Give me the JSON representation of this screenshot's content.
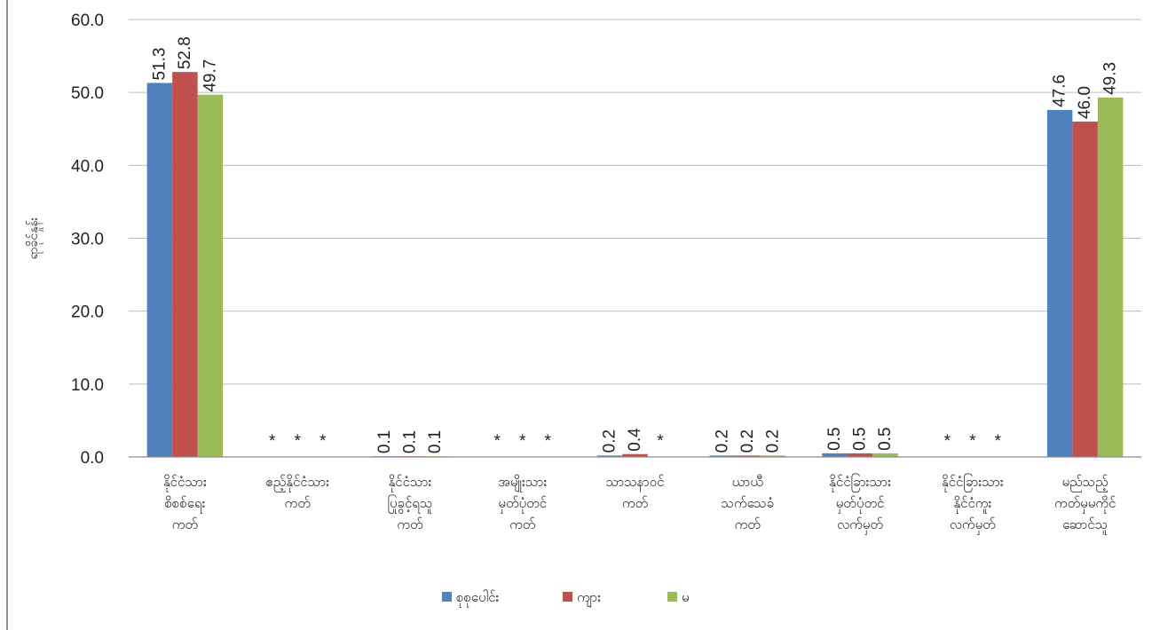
{
  "chart_data": {
    "type": "bar",
    "ylabel": "ရာခိုင်နှုန်း",
    "xlabel": "",
    "ylim": [
      0,
      60
    ],
    "yticks": [
      "0.0",
      "10.0",
      "20.0",
      "30.0",
      "40.0",
      "50.0",
      "60.0"
    ],
    "grid": true,
    "legend_position": "bottom",
    "categories": [
      [
        "နိုင်ငံသား",
        "စိစစ်ရေး",
        "ကတ်"
      ],
      [
        "ဧည့်နိုင်ငံသား",
        "ကတ်"
      ],
      [
        "နိုင်ငံသား",
        "ပြုခွင့်ရသူ",
        "ကတ်"
      ],
      [
        "အမျိုးသား",
        "မှတ်ပုံတင်",
        "ကတ်"
      ],
      [
        "သာသနာဝင်",
        "ကတ်"
      ],
      [
        "ယာယီ",
        "သက်သေခံ",
        "ကတ်"
      ],
      [
        "နိုင်ငံခြားသား",
        "မှတ်ပုံတင်",
        "လက်မှတ်"
      ],
      [
        "နိုင်ငံခြားသား",
        "နိုင်ငံကူး",
        "လက်မှတ်"
      ],
      [
        "မည်သည့်",
        "ကတ်မှမကိုင်",
        "ဆောင်သူ"
      ]
    ],
    "series": [
      {
        "name": "စုစုပေါင်း",
        "color": "#4f81bd",
        "values": [
          51.3,
          0,
          0.1,
          0,
          0.2,
          0.2,
          0.5,
          0,
          47.6
        ],
        "labels": [
          "51.3",
          "*",
          "0.1",
          "*",
          "0.2",
          "0.2",
          "0.5",
          "*",
          "47.6"
        ]
      },
      {
        "name": "ကျား",
        "color": "#c0504d",
        "values": [
          52.8,
          0,
          0.1,
          0,
          0.4,
          0.2,
          0.5,
          0,
          46.0
        ],
        "labels": [
          "52.8",
          "*",
          "0.1",
          "*",
          "0.4",
          "0.2",
          "0.5",
          "*",
          "46.0"
        ]
      },
      {
        "name": "မ",
        "color": "#9bbb59",
        "values": [
          49.7,
          0,
          0.1,
          0,
          0,
          0.2,
          0.5,
          0,
          49.3
        ],
        "labels": [
          "49.7",
          "*",
          "0.1",
          "*",
          "*",
          "0.2",
          "0.5",
          "*",
          "49.3"
        ]
      }
    ]
  }
}
